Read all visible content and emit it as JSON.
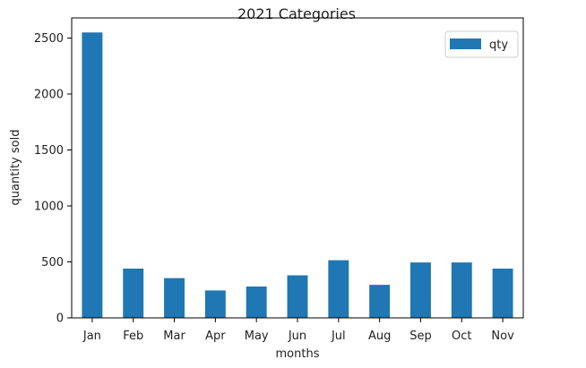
{
  "chart_data": {
    "type": "bar",
    "title": "2021 Categories",
    "xlabel": "months",
    "ylabel": "quantity sold",
    "categories": [
      "Jan",
      "Feb",
      "Mar",
      "Apr",
      "May",
      "Jun",
      "Jul",
      "Aug",
      "Sep",
      "Oct",
      "Nov"
    ],
    "series": [
      {
        "name": "qty",
        "color": "#1f77b4",
        "values": [
          2550,
          440,
          355,
          245,
          280,
          380,
          515,
          295,
          495,
          495,
          440
        ]
      }
    ],
    "ylim": [
      0,
      2680
    ],
    "yticks": [
      0,
      500,
      1000,
      1500,
      2000,
      2500
    ],
    "grid": false,
    "legend_position": "top-right"
  }
}
